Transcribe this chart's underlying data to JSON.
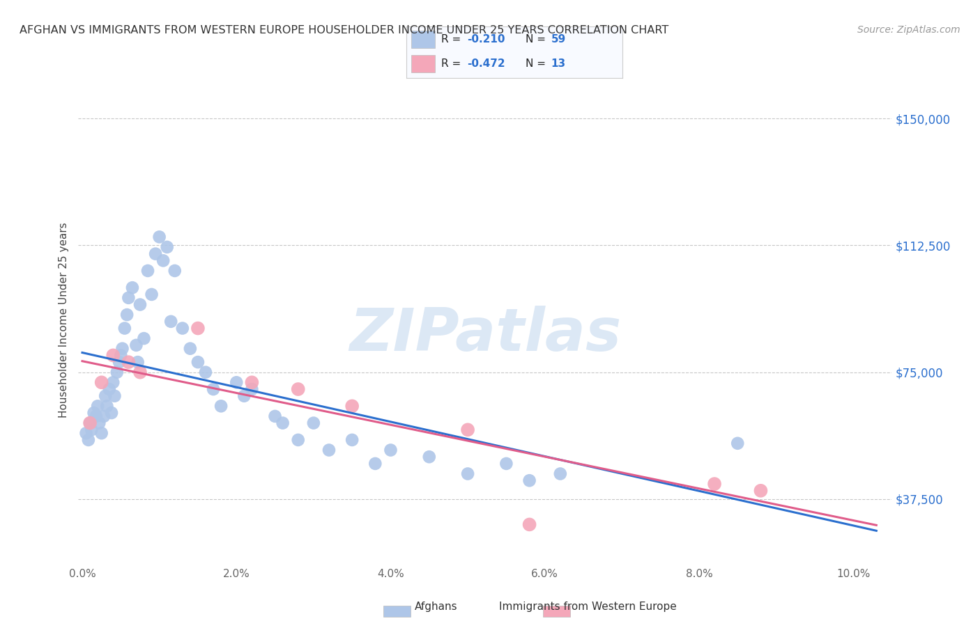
{
  "title": "AFGHAN VS IMMIGRANTS FROM WESTERN EUROPE HOUSEHOLDER INCOME UNDER 25 YEARS CORRELATION CHART",
  "source": "Source: ZipAtlas.com",
  "ylabel": "Householder Income Under 25 years",
  "ytick_labels": [
    "$37,500",
    "$75,000",
    "$112,500",
    "$150,000"
  ],
  "ytick_vals": [
    37500,
    75000,
    112500,
    150000
  ],
  "ymin": 18000,
  "ymax": 163000,
  "xmin": -0.05,
  "xmax": 10.5,
  "afghan_R": -0.21,
  "afghan_N": 59,
  "western_R": -0.472,
  "western_N": 13,
  "afghan_color": "#aec6e8",
  "western_color": "#f4a7b9",
  "afghan_line_color": "#2b6fce",
  "western_line_color": "#e05c8a",
  "background_color": "#ffffff",
  "grid_color": "#c8c8c8",
  "title_color": "#333333",
  "watermark_color": "#dce8f5",
  "watermark_text": "ZIPatlas",
  "legend_box_color": "#f8faff",
  "legend_border_color": "#cccccc",
  "afghans_x": [
    0.05,
    0.08,
    0.1,
    0.12,
    0.15,
    0.18,
    0.2,
    0.22,
    0.25,
    0.28,
    0.3,
    0.32,
    0.35,
    0.38,
    0.4,
    0.42,
    0.45,
    0.48,
    0.5,
    0.52,
    0.55,
    0.58,
    0.6,
    0.65,
    0.7,
    0.72,
    0.75,
    0.8,
    0.85,
    0.9,
    0.95,
    1.0,
    1.05,
    1.1,
    1.15,
    1.2,
    1.3,
    1.4,
    1.5,
    1.6,
    1.7,
    1.8,
    2.0,
    2.1,
    2.2,
    2.5,
    2.6,
    2.8,
    3.0,
    3.2,
    3.5,
    3.8,
    4.0,
    4.5,
    5.0,
    5.5,
    5.8,
    6.2,
    8.5
  ],
  "afghans_y": [
    57000,
    55000,
    60000,
    58000,
    63000,
    62000,
    65000,
    60000,
    57000,
    62000,
    68000,
    65000,
    70000,
    63000,
    72000,
    68000,
    75000,
    78000,
    80000,
    82000,
    88000,
    92000,
    97000,
    100000,
    83000,
    78000,
    95000,
    85000,
    105000,
    98000,
    110000,
    115000,
    108000,
    112000,
    90000,
    105000,
    88000,
    82000,
    78000,
    75000,
    70000,
    65000,
    72000,
    68000,
    70000,
    62000,
    60000,
    55000,
    60000,
    52000,
    55000,
    48000,
    52000,
    50000,
    45000,
    48000,
    43000,
    45000,
    54000
  ],
  "western_x": [
    0.1,
    0.25,
    0.4,
    0.6,
    0.75,
    1.5,
    2.2,
    2.8,
    3.5,
    5.0,
    5.8,
    8.2,
    8.8
  ],
  "western_y": [
    60000,
    72000,
    80000,
    78000,
    75000,
    88000,
    72000,
    70000,
    65000,
    58000,
    30000,
    42000,
    40000
  ]
}
